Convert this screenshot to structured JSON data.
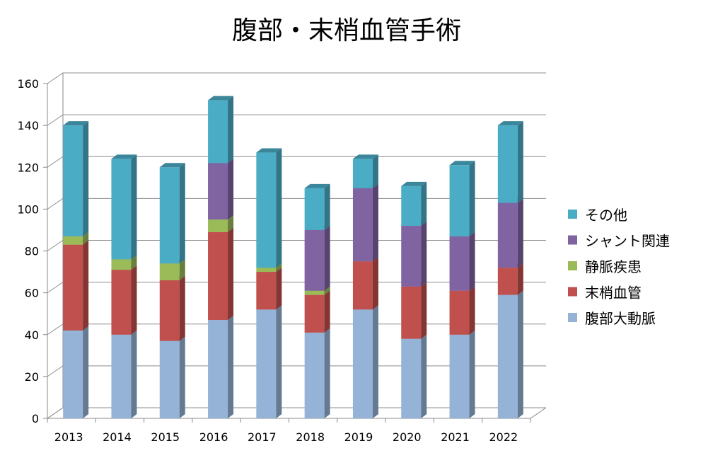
{
  "chart_data": {
    "type": "bar",
    "stacked": true,
    "style": "3d",
    "title": "腹部・末梢血管手術",
    "xlabel": "",
    "ylabel": "",
    "categories": [
      "2013",
      "2014",
      "2015",
      "2016",
      "2017",
      "2018",
      "2019",
      "2020",
      "2021",
      "2022"
    ],
    "ylim": [
      0,
      160
    ],
    "yticks": [
      0,
      20,
      40,
      60,
      80,
      100,
      120,
      140,
      160
    ],
    "grid": true,
    "legend_position": "right",
    "series": [
      {
        "name": "腹部大動脈",
        "color": "#95B3D7",
        "values": [
          42,
          40,
          37,
          47,
          52,
          41,
          52,
          38,
          40,
          59
        ]
      },
      {
        "name": "末梢血管",
        "color": "#C0504D",
        "values": [
          41,
          31,
          29,
          42,
          18,
          18,
          23,
          25,
          21,
          13
        ]
      },
      {
        "name": "静脈疾患",
        "color": "#9BBB59",
        "values": [
          4,
          5,
          8,
          6,
          2,
          2,
          0,
          0,
          0,
          0
        ]
      },
      {
        "name": "シャント関連",
        "color": "#8064A2",
        "values": [
          0,
          0,
          0,
          27,
          0,
          29,
          35,
          29,
          26,
          31
        ]
      },
      {
        "name": "その他",
        "color": "#4BACC6",
        "values": [
          53,
          48,
          46,
          30,
          55,
          20,
          14,
          19,
          34,
          37
        ]
      }
    ],
    "legend_order": [
      "その他",
      "シャント関連",
      "静脈疾患",
      "末梢血管",
      "腹部大動脈"
    ]
  }
}
